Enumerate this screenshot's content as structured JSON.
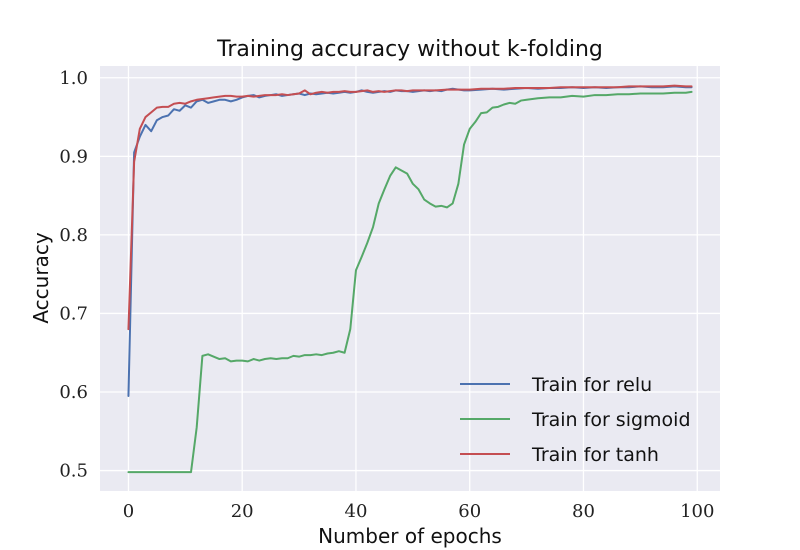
{
  "chart_data": {
    "type": "line",
    "title": "Training accuracy without k-folding",
    "xlabel": "Number of epochs",
    "ylabel": "Accuracy",
    "xlim": [
      -5,
      104
    ],
    "ylim": [
      0.474,
      1.015
    ],
    "xticks": [
      0,
      20,
      40,
      60,
      80,
      100
    ],
    "yticks": [
      0.5,
      0.6,
      0.7,
      0.8,
      0.9,
      1.0
    ],
    "xtick_labels": [
      "0",
      "20",
      "40",
      "60",
      "80",
      "100"
    ],
    "ytick_labels": [
      "0.5",
      "0.6",
      "0.7",
      "0.8",
      "0.9",
      "1.0"
    ],
    "grid": true,
    "legend_position": "bottom-right",
    "colors": {
      "background": "#eaeaf2",
      "grid": "#ffffff"
    },
    "series": [
      {
        "name": "Train for relu",
        "color": "#4c72b0",
        "points": [
          [
            0,
            0.595
          ],
          [
            1,
            0.905
          ],
          [
            2,
            0.925
          ],
          [
            3,
            0.94
          ],
          [
            4,
            0.932
          ],
          [
            5,
            0.946
          ],
          [
            6,
            0.95
          ],
          [
            7,
            0.952
          ],
          [
            8,
            0.96
          ],
          [
            9,
            0.958
          ],
          [
            10,
            0.965
          ],
          [
            11,
            0.962
          ],
          [
            12,
            0.97
          ],
          [
            13,
            0.972
          ],
          [
            14,
            0.968
          ],
          [
            15,
            0.97
          ],
          [
            16,
            0.972
          ],
          [
            17,
            0.972
          ],
          [
            18,
            0.97
          ],
          [
            19,
            0.972
          ],
          [
            20,
            0.975
          ],
          [
            21,
            0.977
          ],
          [
            22,
            0.978
          ],
          [
            23,
            0.975
          ],
          [
            24,
            0.977
          ],
          [
            25,
            0.978
          ],
          [
            26,
            0.979
          ],
          [
            27,
            0.977
          ],
          [
            28,
            0.978
          ],
          [
            29,
            0.979
          ],
          [
            30,
            0.98
          ],
          [
            31,
            0.978
          ],
          [
            32,
            0.98
          ],
          [
            33,
            0.979
          ],
          [
            34,
            0.98
          ],
          [
            35,
            0.981
          ],
          [
            36,
            0.98
          ],
          [
            37,
            0.981
          ],
          [
            38,
            0.982
          ],
          [
            39,
            0.981
          ],
          [
            40,
            0.982
          ],
          [
            41,
            0.984
          ],
          [
            42,
            0.982
          ],
          [
            43,
            0.981
          ],
          [
            44,
            0.982
          ],
          [
            45,
            0.983
          ],
          [
            46,
            0.982
          ],
          [
            47,
            0.984
          ],
          [
            48,
            0.983
          ],
          [
            49,
            0.983
          ],
          [
            50,
            0.982
          ],
          [
            51,
            0.983
          ],
          [
            52,
            0.984
          ],
          [
            53,
            0.983
          ],
          [
            54,
            0.984
          ],
          [
            55,
            0.983
          ],
          [
            56,
            0.985
          ],
          [
            57,
            0.986
          ],
          [
            58,
            0.985
          ],
          [
            59,
            0.984
          ],
          [
            60,
            0.984
          ],
          [
            62,
            0.985
          ],
          [
            64,
            0.986
          ],
          [
            66,
            0.985
          ],
          [
            68,
            0.986
          ],
          [
            70,
            0.987
          ],
          [
            72,
            0.986
          ],
          [
            74,
            0.987
          ],
          [
            76,
            0.987
          ],
          [
            78,
            0.988
          ],
          [
            80,
            0.987
          ],
          [
            82,
            0.988
          ],
          [
            84,
            0.987
          ],
          [
            86,
            0.988
          ],
          [
            88,
            0.988
          ],
          [
            90,
            0.989
          ],
          [
            92,
            0.988
          ],
          [
            94,
            0.988
          ],
          [
            96,
            0.989
          ],
          [
            98,
            0.988
          ],
          [
            99,
            0.988
          ]
        ]
      },
      {
        "name": "Train for sigmoid",
        "color": "#55a868",
        "points": [
          [
            0,
            0.498
          ],
          [
            2,
            0.498
          ],
          [
            4,
            0.498
          ],
          [
            6,
            0.498
          ],
          [
            8,
            0.498
          ],
          [
            10,
            0.498
          ],
          [
            11,
            0.498
          ],
          [
            12,
            0.555
          ],
          [
            13,
            0.646
          ],
          [
            14,
            0.648
          ],
          [
            15,
            0.645
          ],
          [
            16,
            0.642
          ],
          [
            17,
            0.643
          ],
          [
            18,
            0.639
          ],
          [
            19,
            0.64
          ],
          [
            20,
            0.64
          ],
          [
            21,
            0.639
          ],
          [
            22,
            0.642
          ],
          [
            23,
            0.64
          ],
          [
            24,
            0.642
          ],
          [
            25,
            0.643
          ],
          [
            26,
            0.642
          ],
          [
            27,
            0.643
          ],
          [
            28,
            0.643
          ],
          [
            29,
            0.646
          ],
          [
            30,
            0.645
          ],
          [
            31,
            0.647
          ],
          [
            32,
            0.647
          ],
          [
            33,
            0.648
          ],
          [
            34,
            0.647
          ],
          [
            35,
            0.649
          ],
          [
            36,
            0.65
          ],
          [
            37,
            0.652
          ],
          [
            38,
            0.65
          ],
          [
            39,
            0.68
          ],
          [
            40,
            0.755
          ],
          [
            41,
            0.772
          ],
          [
            42,
            0.79
          ],
          [
            43,
            0.81
          ],
          [
            44,
            0.84
          ],
          [
            45,
            0.858
          ],
          [
            46,
            0.875
          ],
          [
            47,
            0.886
          ],
          [
            48,
            0.882
          ],
          [
            49,
            0.878
          ],
          [
            50,
            0.865
          ],
          [
            51,
            0.858
          ],
          [
            52,
            0.845
          ],
          [
            53,
            0.84
          ],
          [
            54,
            0.836
          ],
          [
            55,
            0.837
          ],
          [
            56,
            0.835
          ],
          [
            57,
            0.84
          ],
          [
            58,
            0.865
          ],
          [
            59,
            0.915
          ],
          [
            60,
            0.935
          ],
          [
            61,
            0.944
          ],
          [
            62,
            0.955
          ],
          [
            63,
            0.956
          ],
          [
            64,
            0.962
          ],
          [
            65,
            0.963
          ],
          [
            66,
            0.966
          ],
          [
            67,
            0.968
          ],
          [
            68,
            0.967
          ],
          [
            69,
            0.971
          ],
          [
            70,
            0.972
          ],
          [
            72,
            0.974
          ],
          [
            74,
            0.975
          ],
          [
            76,
            0.975
          ],
          [
            78,
            0.977
          ],
          [
            80,
            0.976
          ],
          [
            82,
            0.978
          ],
          [
            84,
            0.978
          ],
          [
            86,
            0.979
          ],
          [
            88,
            0.979
          ],
          [
            90,
            0.98
          ],
          [
            92,
            0.98
          ],
          [
            94,
            0.98
          ],
          [
            96,
            0.981
          ],
          [
            98,
            0.981
          ],
          [
            99,
            0.982
          ]
        ]
      },
      {
        "name": "Train for tanh",
        "color": "#c44e52",
        "points": [
          [
            0,
            0.68
          ],
          [
            1,
            0.893
          ],
          [
            2,
            0.935
          ],
          [
            3,
            0.95
          ],
          [
            4,
            0.956
          ],
          [
            5,
            0.962
          ],
          [
            6,
            0.963
          ],
          [
            7,
            0.963
          ],
          [
            8,
            0.967
          ],
          [
            9,
            0.968
          ],
          [
            10,
            0.967
          ],
          [
            11,
            0.97
          ],
          [
            12,
            0.972
          ],
          [
            13,
            0.973
          ],
          [
            14,
            0.974
          ],
          [
            15,
            0.975
          ],
          [
            16,
            0.976
          ],
          [
            17,
            0.977
          ],
          [
            18,
            0.977
          ],
          [
            19,
            0.976
          ],
          [
            20,
            0.976
          ],
          [
            21,
            0.977
          ],
          [
            22,
            0.976
          ],
          [
            23,
            0.977
          ],
          [
            24,
            0.978
          ],
          [
            25,
            0.978
          ],
          [
            26,
            0.978
          ],
          [
            27,
            0.979
          ],
          [
            28,
            0.978
          ],
          [
            29,
            0.979
          ],
          [
            30,
            0.98
          ],
          [
            31,
            0.984
          ],
          [
            32,
            0.979
          ],
          [
            33,
            0.981
          ],
          [
            34,
            0.982
          ],
          [
            35,
            0.981
          ],
          [
            36,
            0.982
          ],
          [
            37,
            0.982
          ],
          [
            38,
            0.983
          ],
          [
            39,
            0.982
          ],
          [
            40,
            0.982
          ],
          [
            41,
            0.983
          ],
          [
            42,
            0.984
          ],
          [
            43,
            0.982
          ],
          [
            44,
            0.983
          ],
          [
            45,
            0.982
          ],
          [
            46,
            0.983
          ],
          [
            47,
            0.984
          ],
          [
            48,
            0.984
          ],
          [
            49,
            0.983
          ],
          [
            50,
            0.984
          ],
          [
            52,
            0.984
          ],
          [
            54,
            0.984
          ],
          [
            56,
            0.985
          ],
          [
            58,
            0.985
          ],
          [
            60,
            0.985
          ],
          [
            62,
            0.986
          ],
          [
            64,
            0.986
          ],
          [
            66,
            0.986
          ],
          [
            68,
            0.987
          ],
          [
            70,
            0.987
          ],
          [
            72,
            0.987
          ],
          [
            74,
            0.987
          ],
          [
            76,
            0.988
          ],
          [
            78,
            0.988
          ],
          [
            80,
            0.988
          ],
          [
            82,
            0.988
          ],
          [
            84,
            0.988
          ],
          [
            86,
            0.988
          ],
          [
            88,
            0.989
          ],
          [
            90,
            0.989
          ],
          [
            92,
            0.989
          ],
          [
            94,
            0.989
          ],
          [
            96,
            0.99
          ],
          [
            98,
            0.989
          ],
          [
            99,
            0.989
          ]
        ]
      }
    ]
  }
}
